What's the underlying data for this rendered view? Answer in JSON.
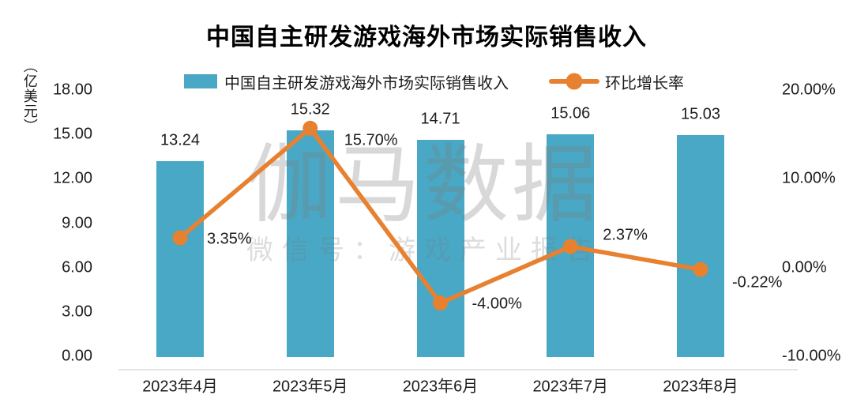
{
  "chart_data": {
    "type": "bar",
    "title": "中国自主研发游戏海外市场实际销售收入",
    "categories": [
      "2023年4月",
      "2023年5月",
      "2023年6月",
      "2023年7月",
      "2023年8月"
    ],
    "series": [
      {
        "name": "中国自主研发游戏海外市场实际销售收入",
        "type": "bar",
        "axis": "left",
        "values": [
          13.24,
          15.32,
          14.71,
          15.06,
          15.03
        ],
        "labels": [
          "13.24",
          "15.32",
          "14.71",
          "15.06",
          "15.03"
        ],
        "color": "#48A8C5"
      },
      {
        "name": "环比增长率",
        "type": "line",
        "axis": "right",
        "values": [
          3.35,
          15.7,
          -4.0,
          2.37,
          -0.22
        ],
        "labels": [
          "3.35%",
          "15.70%",
          "-4.00%",
          "2.37%",
          "-0.22%"
        ],
        "color": "#E8812F"
      }
    ],
    "left_axis": {
      "unit": "（亿美元）",
      "ticks": [
        "18.00",
        "15.00",
        "12.00",
        "9.00",
        "6.00",
        "3.00",
        "0.00"
      ],
      "min": 0,
      "max": 18
    },
    "right_axis": {
      "ticks": [
        "20.00%",
        "10.00%",
        "0.00%",
        "-10.00%"
      ],
      "min": -10,
      "max": 20
    },
    "legend_position": "top",
    "grid": false,
    "watermark": {
      "line1": "伽马数据",
      "line2": "微信号：游戏产业报告"
    }
  },
  "colors": {
    "bar": "#48A8C5",
    "line": "#E8812F",
    "text": "#1C1C1C",
    "axis_line": "#E4E4E4",
    "watermark_gray": "#D9D9D9",
    "background": "#FFFFFF"
  }
}
